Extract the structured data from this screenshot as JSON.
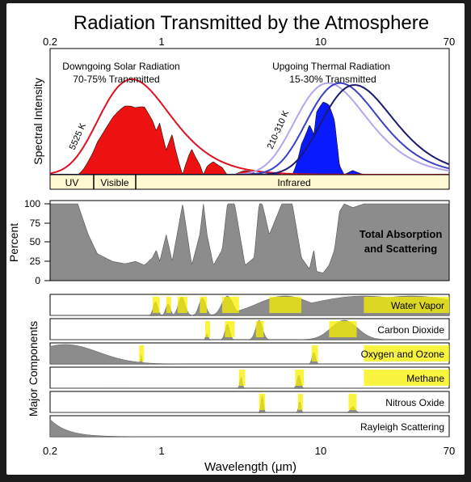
{
  "title": "Radiation Transmitted by the Atmosphere",
  "x_ticks": [
    "0.2",
    "1",
    "10",
    "70"
  ],
  "xlabel": "Wavelength (μm)",
  "panel1": {
    "ylabel": "Spectral Intensity",
    "solar_title": "Downgoing Solar Radiation",
    "solar_sub": "70-75% Transmitted",
    "thermal_title": "Upgoing Thermal Radiation",
    "thermal_sub": "15-30% Transmitted",
    "solar_temp": "5525 K",
    "thermal_temp": "210-310 K",
    "bands": [
      "UV",
      "Visible",
      "Infrared"
    ]
  },
  "panel2": {
    "ylabel": "Percent",
    "y_ticks": [
      "100",
      "75",
      "50",
      "25",
      "0"
    ],
    "label_line1": "Total Absorption",
    "label_line2": "and Scattering"
  },
  "panel3": {
    "ylabel": "Major Components",
    "components": [
      "Water Vapor",
      "Carbon Dioxide",
      "Oxygen and Ozone",
      "Methane",
      "Nitrous Oxide",
      "Rayleigh Scattering"
    ]
  },
  "colors": {
    "solar_fill": "#ee1111",
    "solar_curve": "#dd1122",
    "thermal_fill": "#0a1aff",
    "thermal_curves": [
      "#b4a6ee",
      "#3a40c8",
      "#1a1a70"
    ],
    "absorption_fill": "#8c8c8c",
    "band_fill": "#fff8d0",
    "highlight": "#f5f000"
  },
  "chart_data": {
    "type": "area",
    "x_scale": "log",
    "xlim": [
      0.2,
      70
    ],
    "total_absorption": {
      "x": [
        0.2,
        0.3,
        0.35,
        0.4,
        0.5,
        0.6,
        0.7,
        0.8,
        0.9,
        0.95,
        1.0,
        1.1,
        1.2,
        1.4,
        1.6,
        1.8,
        1.9,
        2.0,
        2.2,
        2.5,
        2.7,
        3.0,
        3.5,
        4.0,
        4.3,
        4.5,
        5.0,
        6.0,
        7.0,
        8.0,
        9.0,
        9.6,
        10.0,
        11.0,
        12.0,
        13.0,
        14.0,
        15.0,
        17.0,
        20.0,
        30.0,
        70.0
      ],
      "y": [
        100,
        100,
        60,
        35,
        25,
        22,
        25,
        20,
        30,
        40,
        25,
        60,
        25,
        100,
        20,
        60,
        100,
        60,
        20,
        40,
        100,
        100,
        20,
        30,
        100,
        100,
        60,
        100,
        100,
        30,
        15,
        40,
        12,
        10,
        20,
        40,
        90,
        100,
        95,
        100,
        100,
        100
      ]
    },
    "solar_blackbody_K": 5525,
    "thermal_blackbody_K": [
      210,
      260,
      310
    ],
    "solar_peak_um": 0.5,
    "thermal_peak_um": 11
  }
}
